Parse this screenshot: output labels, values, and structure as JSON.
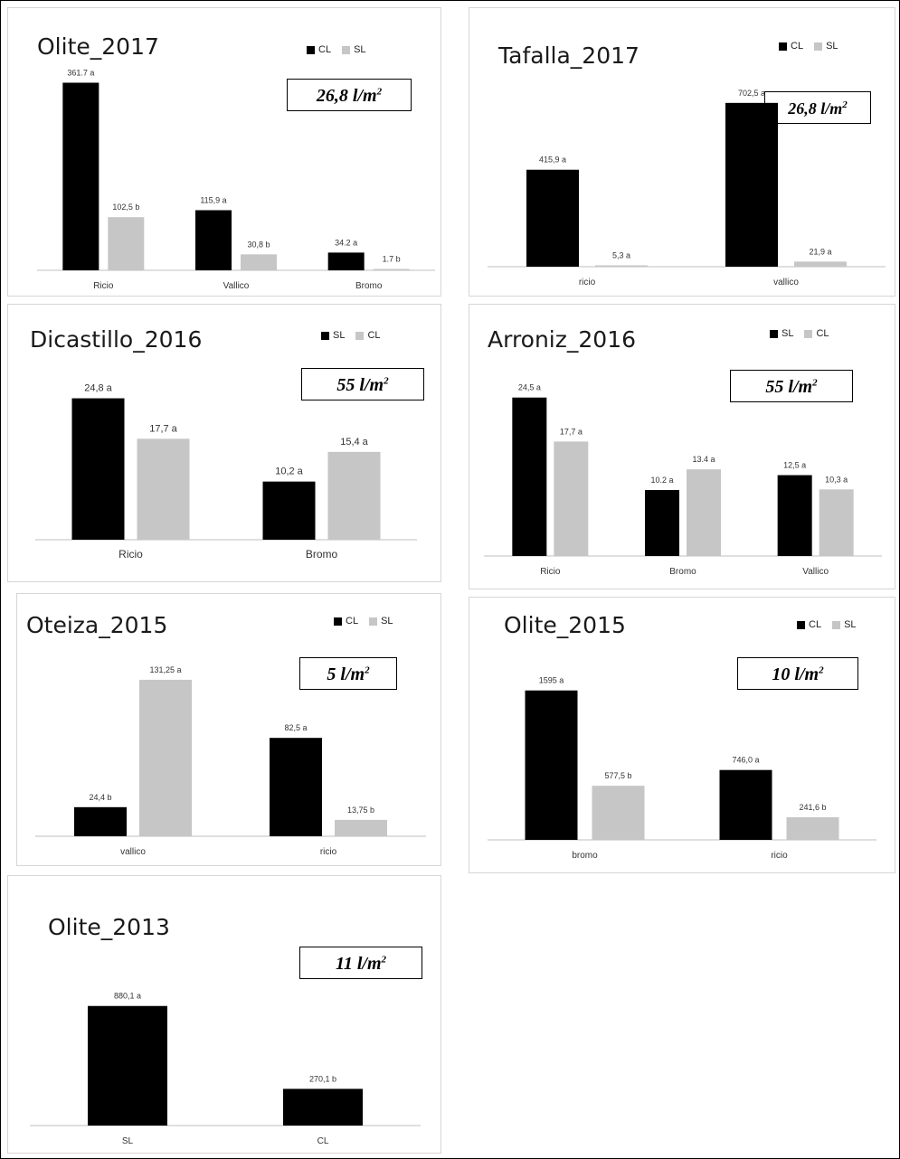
{
  "colors": {
    "black_series": "#000000",
    "gray_series": "#c6c6c6",
    "axis": "#bfbfbf",
    "label": "#333333"
  },
  "panels": [
    {
      "title": "Olite_2017",
      "rainfall": {
        "value": "26,8 l/m",
        "sup": "2"
      },
      "legend": [
        {
          "name": "CL",
          "color": "#000000"
        },
        {
          "name": "SL",
          "color": "#c6c6c6"
        }
      ]
    },
    {
      "title": "Tafalla_2017",
      "rainfall": {
        "value": "26,8 l/m",
        "sup": "2"
      },
      "legend": [
        {
          "name": "CL",
          "color": "#000000"
        },
        {
          "name": "SL",
          "color": "#c6c6c6"
        }
      ]
    },
    {
      "title": "Dicastillo_2016",
      "rainfall": {
        "value": "55 l/m",
        "sup": "2"
      },
      "legend": [
        {
          "name": "SL",
          "color": "#000000"
        },
        {
          "name": "CL",
          "color": "#c6c6c6"
        }
      ]
    },
    {
      "title": "Arroniz_2016",
      "rainfall": {
        "value": "55 l/m",
        "sup": "2"
      },
      "legend": [
        {
          "name": "SL",
          "color": "#000000"
        },
        {
          "name": "CL",
          "color": "#c6c6c6"
        }
      ]
    },
    {
      "title": "Oteiza_2015",
      "rainfall": {
        "value": "5 l/m",
        "sup": "2"
      },
      "legend": [
        {
          "name": "CL",
          "color": "#000000"
        },
        {
          "name": "SL",
          "color": "#c6c6c6"
        }
      ]
    },
    {
      "title": "Olite_2015",
      "rainfall": {
        "value": "10 l/m",
        "sup": "2"
      },
      "legend": [
        {
          "name": "CL",
          "color": "#000000"
        },
        {
          "name": "SL",
          "color": "#c6c6c6"
        }
      ]
    },
    {
      "title": "Olite_2013",
      "rainfall": {
        "value": "11 l/m",
        "sup": "2"
      },
      "legend": []
    }
  ],
  "chart_data": [
    {
      "type": "bar",
      "title": "Olite_2017",
      "categories": [
        "Ricio",
        "Vallico",
        "Bromo"
      ],
      "series": [
        {
          "name": "CL",
          "color": "#000000",
          "values": [
            361.7,
            115.9,
            34.2
          ],
          "labels": [
            "361.7 a",
            "115,9 a",
            "34.2 a"
          ]
        },
        {
          "name": "SL",
          "color": "#c6c6c6",
          "values": [
            102.5,
            30.8,
            1.7
          ],
          "labels": [
            "102,5 b",
            "30,8 b",
            "1.7 b"
          ]
        }
      ],
      "ylim": [
        0,
        380
      ],
      "legend_position": "top-right"
    },
    {
      "type": "bar",
      "title": "Tafalla_2017",
      "categories": [
        "ricio",
        "vallico"
      ],
      "series": [
        {
          "name": "CL",
          "color": "#000000",
          "values": [
            415.9,
            702.5
          ],
          "labels": [
            "415,9 a",
            "702,5 a"
          ]
        },
        {
          "name": "SL",
          "color": "#c6c6c6",
          "values": [
            5.3,
            21.9
          ],
          "labels": [
            "5,3 a",
            "21,9 a"
          ]
        }
      ],
      "ylim": [
        0,
        760
      ],
      "legend_position": "top-right"
    },
    {
      "type": "bar",
      "title": "Dicastillo_2016",
      "categories": [
        "Ricio",
        "Bromo"
      ],
      "series": [
        {
          "name": "SL",
          "color": "#000000",
          "values": [
            24.8,
            10.2
          ],
          "labels": [
            "24,8 a",
            "10,2 a"
          ]
        },
        {
          "name": "CL",
          "color": "#c6c6c6",
          "values": [
            17.7,
            15.4
          ],
          "labels": [
            "17,7 a",
            "15,4 a"
          ]
        }
      ],
      "ylim": [
        0,
        26
      ],
      "legend_position": "top-right"
    },
    {
      "type": "bar",
      "title": "Arroniz_2016",
      "categories": [
        "Ricio",
        "Bromo",
        "Vallico"
      ],
      "series": [
        {
          "name": "SL",
          "color": "#000000",
          "values": [
            24.5,
            10.2,
            12.5
          ],
          "labels": [
            "24,5 a",
            "10.2 a",
            "12,5 a"
          ]
        },
        {
          "name": "CL",
          "color": "#c6c6c6",
          "values": [
            17.7,
            13.4,
            10.3
          ],
          "labels": [
            "17,7 a",
            "13.4 a",
            "10,3 a"
          ]
        }
      ],
      "ylim": [
        0,
        26
      ],
      "legend_position": "top-right"
    },
    {
      "type": "bar",
      "title": "Oteiza_2015",
      "categories": [
        "vallico",
        "ricio"
      ],
      "series": [
        {
          "name": "CL",
          "color": "#000000",
          "values": [
            24.4,
            82.5
          ],
          "labels": [
            "24,4 b",
            "82,5 a"
          ]
        },
        {
          "name": "SL",
          "color": "#c6c6c6",
          "values": [
            131.25,
            13.75
          ],
          "labels": [
            "131,25 a",
            "13,75 b"
          ]
        }
      ],
      "ylim": [
        0,
        138
      ],
      "legend_position": "top-right"
    },
    {
      "type": "bar",
      "title": "Olite_2015",
      "categories": [
        "bromo",
        "ricio"
      ],
      "series": [
        {
          "name": "CL",
          "color": "#000000",
          "values": [
            1595,
            746
          ],
          "labels": [
            "1595 a",
            "746,0 a"
          ]
        },
        {
          "name": "SL",
          "color": "#c6c6c6",
          "values": [
            577.5,
            241.6
          ],
          "labels": [
            "577,5 b",
            "241,6 b"
          ]
        }
      ],
      "ylim": [
        0,
        1660
      ],
      "legend_position": "top-right"
    },
    {
      "type": "bar",
      "title": "Olite_2013",
      "categories": [
        "SL",
        "CL"
      ],
      "series": [
        {
          "values": [
            880.1,
            270.1
          ],
          "labels": [
            "880,1 a",
            "270,1 b"
          ],
          "color": "#000000"
        }
      ],
      "ylim": [
        0,
        905
      ]
    }
  ]
}
